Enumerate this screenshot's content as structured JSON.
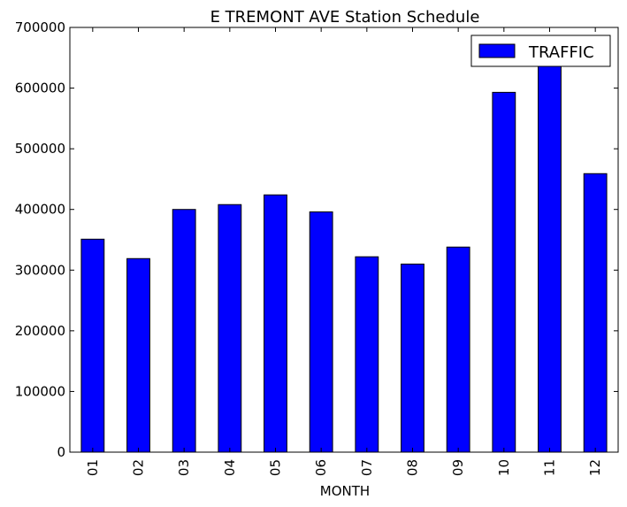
{
  "chart_data": {
    "type": "bar",
    "title": "E TREMONT AVE Station Schedule",
    "xlabel": "MONTH",
    "ylabel": "",
    "categories": [
      "01",
      "02",
      "03",
      "04",
      "05",
      "06",
      "07",
      "08",
      "09",
      "10",
      "11",
      "12"
    ],
    "series": [
      {
        "name": "TRAFFIC",
        "color": "#0000ff",
        "values": [
          351000,
          319000,
          400000,
          408000,
          424000,
          396000,
          322000,
          310000,
          338000,
          593000,
          640000,
          459000
        ]
      }
    ],
    "ylim": [
      0,
      700000
    ],
    "yticks": [
      0,
      100000,
      200000,
      300000,
      400000,
      500000,
      600000,
      700000
    ],
    "ytick_labels": [
      "0",
      "100000",
      "200000",
      "300000",
      "400000",
      "500000",
      "600000",
      "700000"
    ],
    "grid": false,
    "legend_position": "top-right"
  }
}
